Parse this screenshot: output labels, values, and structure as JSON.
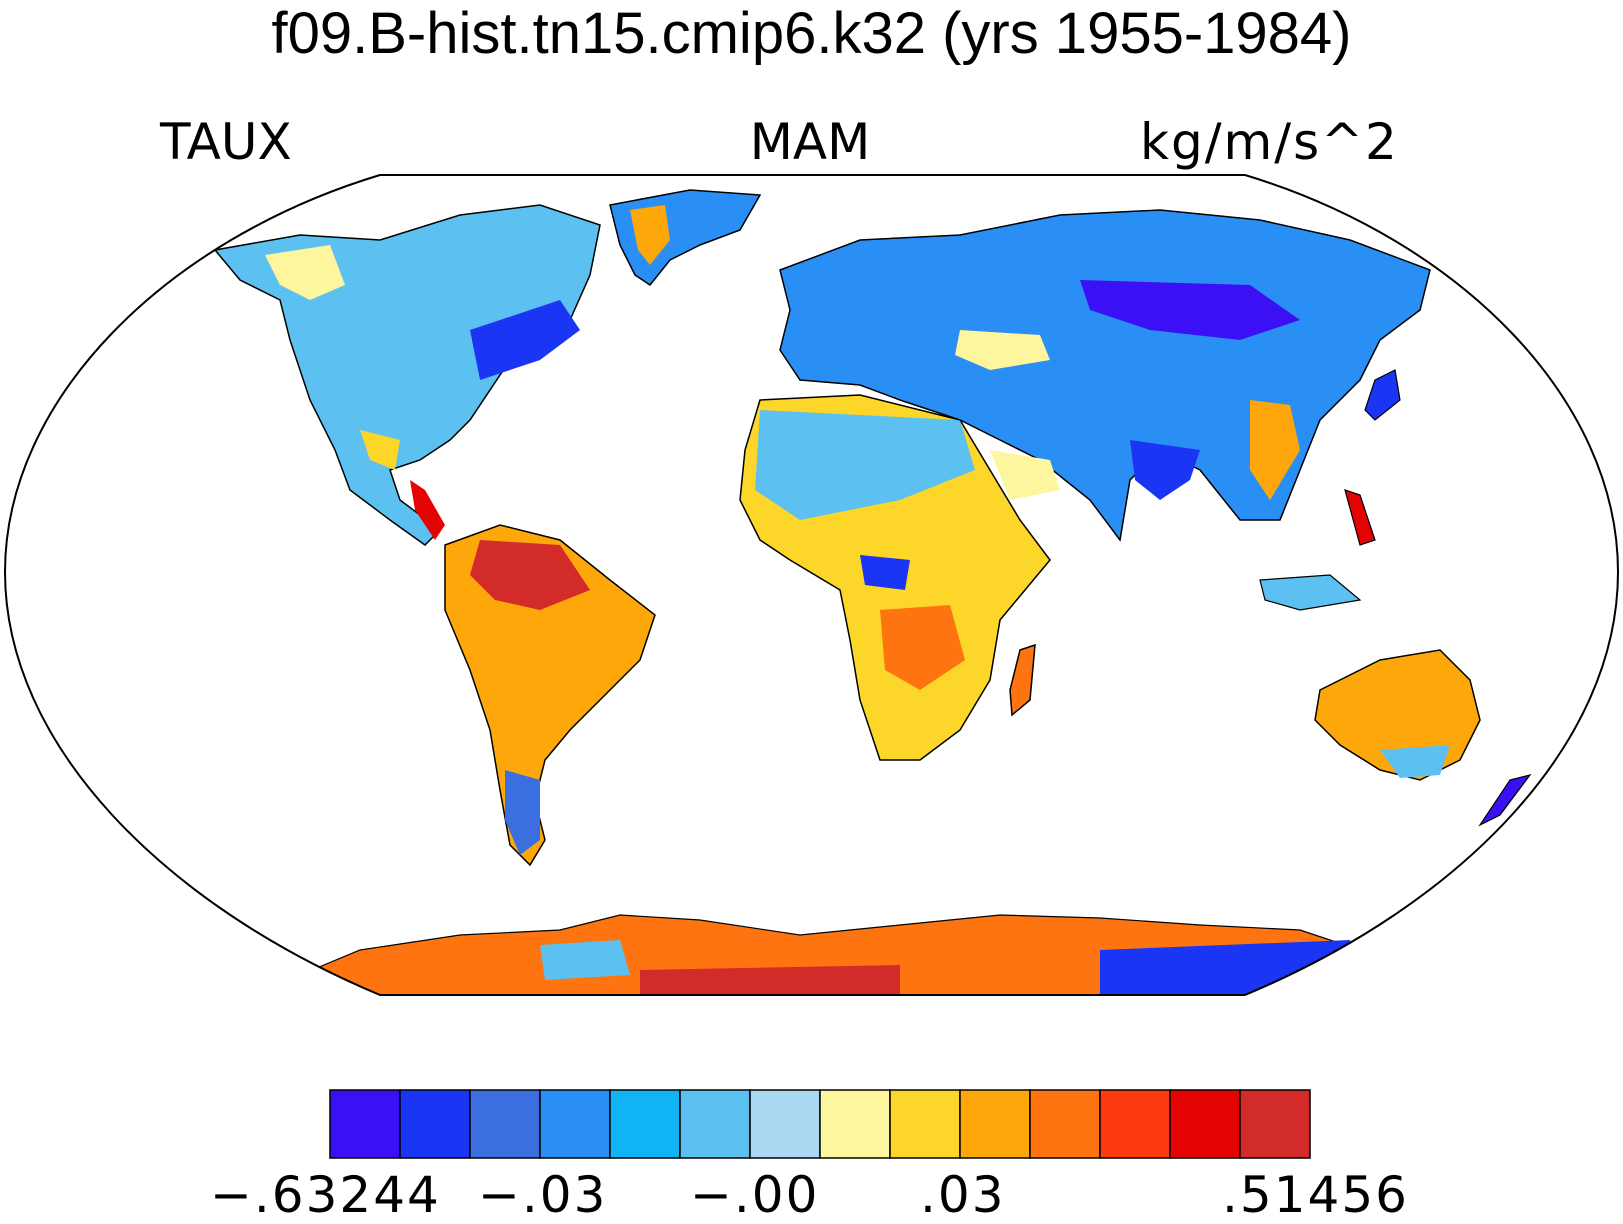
{
  "title": "f09.B-hist.tn15.cmip6.k32 (yrs 1955-1984)",
  "variable": "TAUX",
  "season": "MAM",
  "units": "kg/m/s^2",
  "colorbar": {
    "colors": [
      "#3b10f5",
      "#1a35f3",
      "#3b6fe0",
      "#2a8ff5",
      "#10b4f5",
      "#5cc1f0",
      "#aad8f3",
      "#fdf69e",
      "#fdd62a",
      "#fda70a",
      "#fd7410",
      "#fd3a10",
      "#e40303",
      "#d32a2a"
    ],
    "labels": [
      "−.63244",
      "−.03",
      "−.00",
      ".03",
      ".51456"
    ]
  },
  "colors": {
    "ocean": "#ffffff",
    "outline": "#000000"
  }
}
